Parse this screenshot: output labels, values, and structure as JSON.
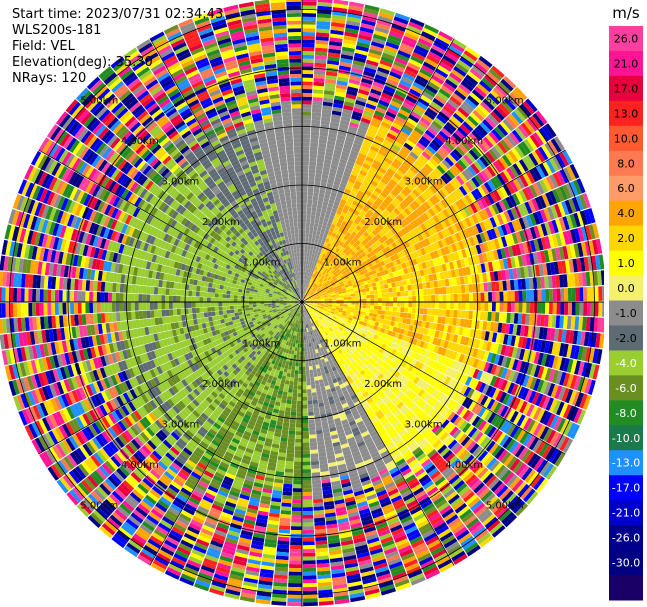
{
  "info": {
    "start_time": "Start time: 2023/07/31 02:34:43",
    "site": "WLS200s-181",
    "field": "Field: VEL",
    "elevation": "Elevation(deg): 35.30",
    "nrays": "NRays: 120"
  },
  "chart_data": {
    "type": "heatmap",
    "subtype": "ppi-polar",
    "nrays": 120,
    "ring_labels": [
      "1.00km",
      "2.00km",
      "3.00km",
      "4.00km",
      "5.00km"
    ],
    "max_range_km": 5.2,
    "colorbar": {
      "unit": "m/s",
      "ticks": [
        "26.0",
        "21.0",
        "17.0",
        "13.0",
        "10.0",
        "8.0",
        "6.0",
        "4.0",
        "2.0",
        "1.0",
        "0.0",
        "-1.0",
        "-2.0",
        "-4.0",
        "-6.0",
        "-8.0",
        "-10.0",
        "-13.0",
        "-17.0",
        "-21.0",
        "-26.0",
        "-30.0"
      ],
      "colors": [
        "#ff3fa0",
        "#ff1493",
        "#e8003c",
        "#ff2020",
        "#ff5a32",
        "#ff7a50",
        "#ff9c68",
        "#ffa500",
        "#ffd700",
        "#ffff00",
        "#f2f06e",
        "#8c8c8c",
        "#5f6b74",
        "#9acd32",
        "#6b8e23",
        "#228b22",
        "#1b7a4b",
        "#1e90ff",
        "#0000ff",
        "#0000cd",
        "#00008b",
        "#000080",
        "#1a0066"
      ]
    },
    "velocity_pattern": [
      {
        "sector": "north",
        "range_km": [
          0,
          2.5
        ],
        "value": -0.5
      },
      {
        "sector": "northeast-east",
        "range_km": [
          0,
          3.0
        ],
        "value": 4.0
      },
      {
        "sector": "east",
        "range_km": [
          0,
          2.5
        ],
        "value": 1.5
      },
      {
        "sector": "south-southeast",
        "range_km": [
          0,
          2.0
        ],
        "value": -0.5
      },
      {
        "sector": "south",
        "range_km": [
          0,
          3.0
        ],
        "value": -5.0
      },
      {
        "sector": "west",
        "range_km": [
          0,
          3.0
        ],
        "value": -2.5
      },
      {
        "sector": "outer",
        "range_km": [
          3.0,
          5.2
        ],
        "value": "noise"
      }
    ]
  }
}
